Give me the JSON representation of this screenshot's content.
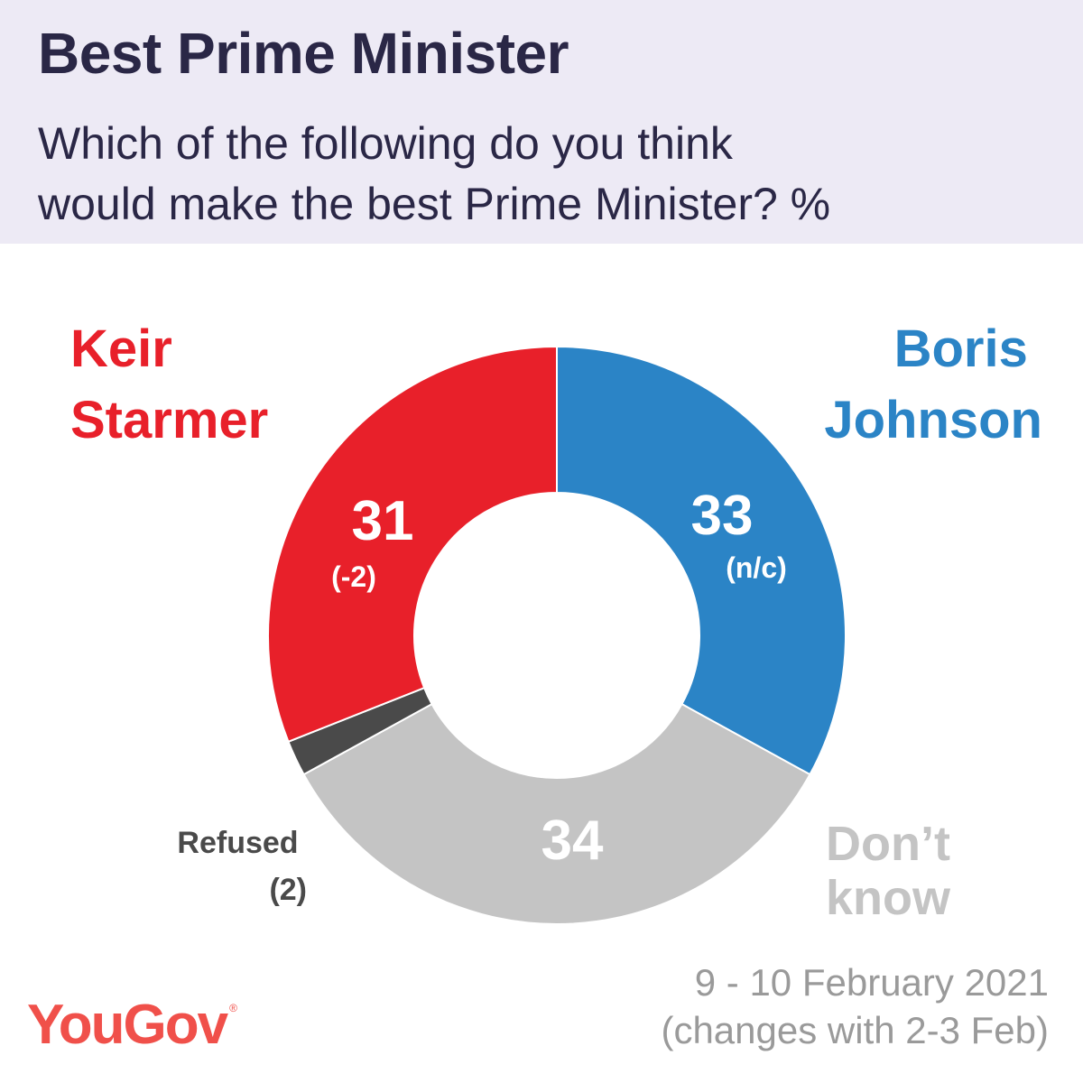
{
  "header": {
    "title": "Best Prime Minister",
    "subtitle_line1": "Which of the following do you think",
    "subtitle_line2": "would make the best Prime Minister? %"
  },
  "chart_data": {
    "type": "pie",
    "title": "Best Prime Minister",
    "subtitle": "Which of the following do you think would make the best Prime Minister? %",
    "slices": [
      {
        "name": "Boris Johnson",
        "name_line1": "Boris",
        "name_line2": "Johnson",
        "value": 33,
        "value_label": "33",
        "change": "(n/c)",
        "color": "#2b84c6"
      },
      {
        "name": "Don’t know",
        "name_line1": "Don’t",
        "name_line2": "know",
        "value": 34,
        "value_label": "34",
        "change": "",
        "color": "#c4c4c4"
      },
      {
        "name": "Refused",
        "name_line1": "Refused",
        "name_line2": "(2)",
        "value": 2,
        "value_label": "",
        "change": "",
        "color": "#4a4a4a"
      },
      {
        "name": "Keir Starmer",
        "name_line1": "Keir",
        "name_line2": "Starmer",
        "value": 31,
        "value_label": "31",
        "change": "(-2)",
        "color": "#e8202a"
      }
    ]
  },
  "footer": {
    "date_line1": "9 - 10 February 2021",
    "date_line2": "(changes with 2-3 Feb)",
    "logo": "YouGov",
    "logo_mark": "®"
  },
  "colors": {
    "header_bg": "#edeaf5",
    "title": "#2a2746",
    "logo": "#f0504a",
    "footer_text": "#9a9a9a"
  }
}
